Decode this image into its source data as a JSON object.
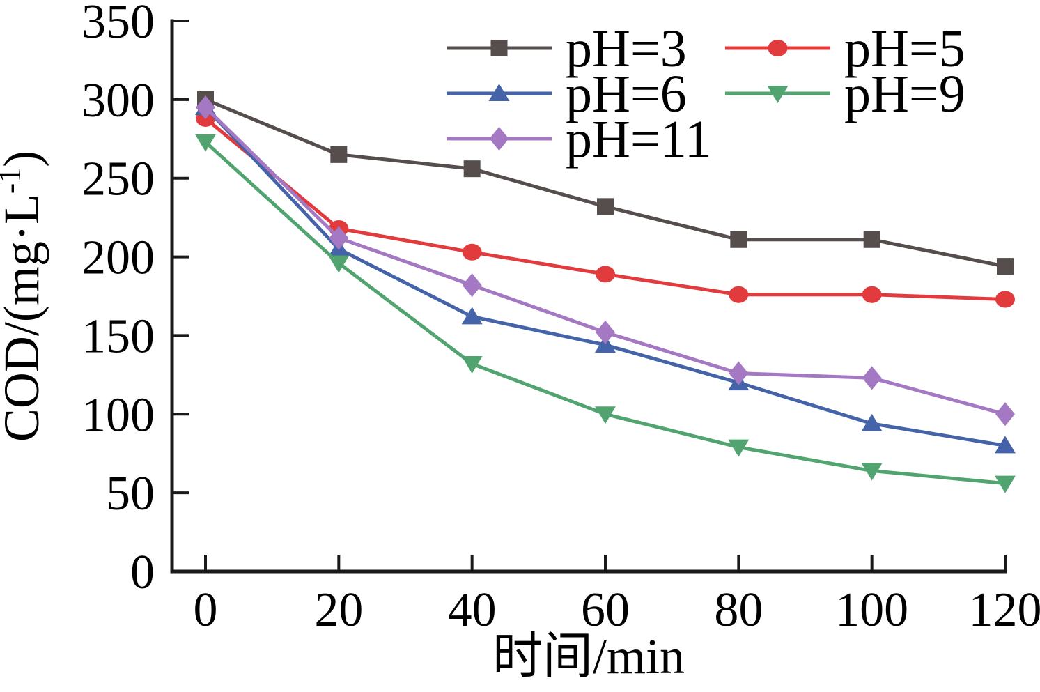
{
  "chart_data": {
    "type": "line",
    "title": "",
    "xlabel": "时间/min",
    "ylabel": "COD/(mg·L⁻¹)",
    "ylabel_parts": {
      "base": "COD/(mg·L",
      "sup": "-1",
      "close": ")"
    },
    "xlim": [
      0,
      120
    ],
    "ylim": [
      0,
      350
    ],
    "x_ticks": [
      0,
      20,
      40,
      60,
      80,
      100,
      120
    ],
    "y_ticks": [
      0,
      50,
      100,
      150,
      200,
      250,
      300,
      350
    ],
    "grid": false,
    "legend_position": "top-inside-two-columns",
    "x": [
      0,
      20,
      40,
      60,
      80,
      100,
      120
    ],
    "series": [
      {
        "name": "pH=3",
        "color": "#564d4d",
        "marker": "square",
        "values": [
          300,
          265,
          256,
          232,
          211,
          211,
          194
        ]
      },
      {
        "name": "pH=5",
        "color": "#e23b3e",
        "marker": "circle",
        "values": [
          288,
          218,
          203,
          189,
          176,
          176,
          173
        ]
      },
      {
        "name": "pH=6",
        "color": "#4563a9",
        "marker": "triangle-up",
        "values": [
          295,
          205,
          162,
          144,
          120,
          94,
          80
        ]
      },
      {
        "name": "pH=9",
        "color": "#51a470",
        "marker": "triangle-down",
        "values": [
          273,
          196,
          132,
          100,
          79,
          64,
          56
        ]
      },
      {
        "name": "pH=11",
        "color": "#a478c3",
        "marker": "diamond",
        "values": [
          295,
          212,
          182,
          152,
          126,
          123,
          100
        ]
      }
    ],
    "legend_entries": [
      "pH=3",
      "pH=5",
      "pH=6",
      "pH=9",
      "pH=11"
    ],
    "axis_color": "#1a1a1a"
  }
}
